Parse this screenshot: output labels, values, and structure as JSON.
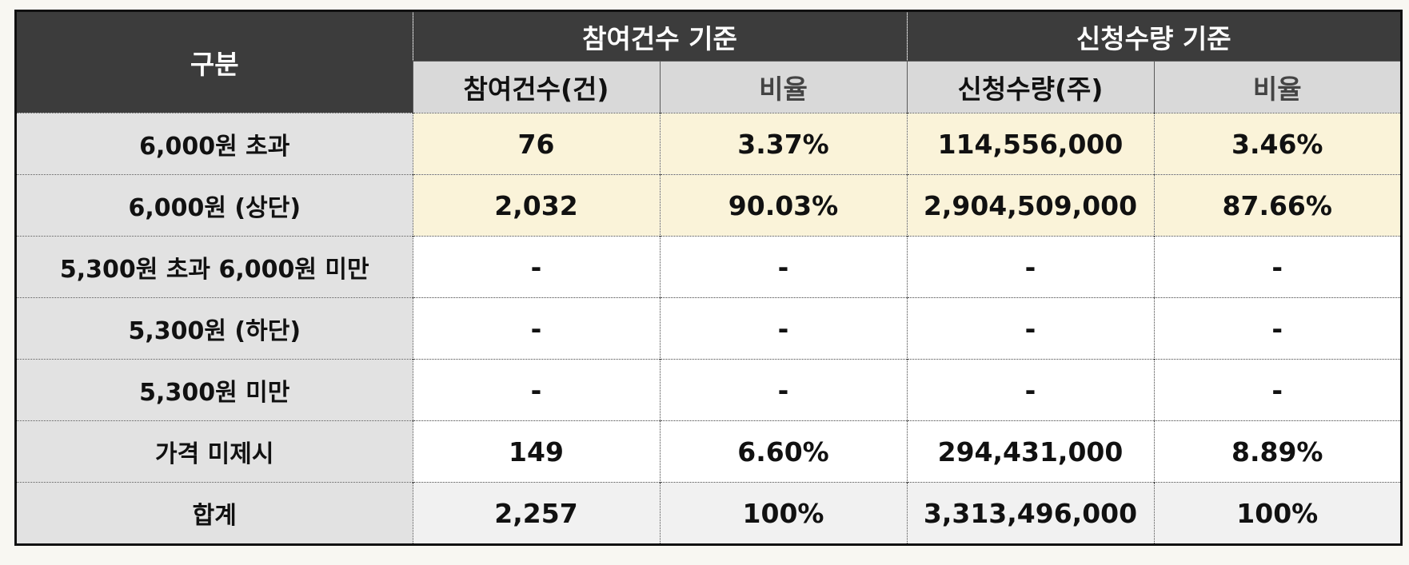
{
  "header": {
    "category_label": "구분",
    "group_participation": "참여건수 기준",
    "group_quantity": "신청수량 기준",
    "sub_participation_count": "참여건수(건)",
    "sub_participation_rate": "비율",
    "sub_quantity_count": "신청수량(주)",
    "sub_quantity_rate": "비율"
  },
  "rows": [
    {
      "label": "6,000원 초과",
      "participation_count": "76",
      "participation_rate": "3.37%",
      "quantity": "114,556,000",
      "quantity_rate": "3.46%"
    },
    {
      "label": "6,000원 (상단)",
      "participation_count": "2,032",
      "participation_rate": "90.03%",
      "quantity": "2,904,509,000",
      "quantity_rate": "87.66%"
    },
    {
      "label": "5,300원 초과 6,000원 미만",
      "participation_count": "-",
      "participation_rate": "-",
      "quantity": "-",
      "quantity_rate": "-"
    },
    {
      "label": "5,300원 (하단)",
      "participation_count": "-",
      "participation_rate": "-",
      "quantity": "-",
      "quantity_rate": "-"
    },
    {
      "label": "5,300원 미만",
      "participation_count": "-",
      "participation_rate": "-",
      "quantity": "-",
      "quantity_rate": "-"
    },
    {
      "label": "가격 미제시",
      "participation_count": "149",
      "participation_rate": "6.60%",
      "quantity": "294,431,000",
      "quantity_rate": "8.89%"
    },
    {
      "label": "합계",
      "participation_count": "2,257",
      "participation_rate": "100%",
      "quantity": "3,313,496,000",
      "quantity_rate": "100%"
    }
  ],
  "colors": {
    "header_dark": "#3c3c3c",
    "header_sub": "#d9d9d9",
    "label_column": "#e2e2e2",
    "highlight_row": "#faf3d9",
    "total_row": "#f1f1f1"
  }
}
